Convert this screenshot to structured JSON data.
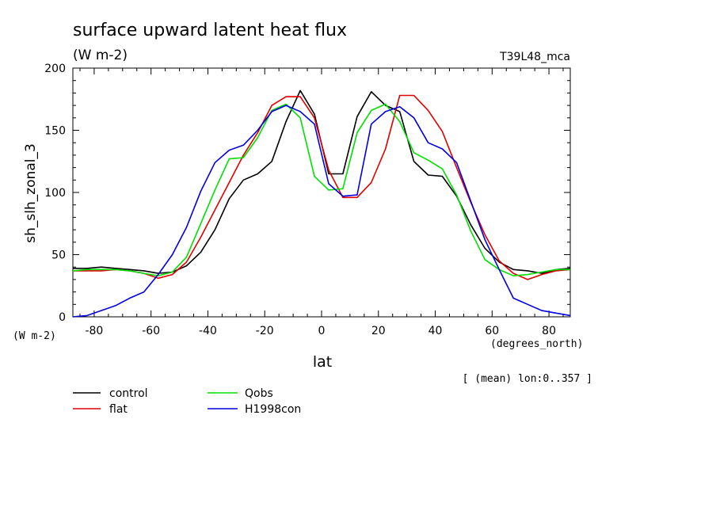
{
  "chart_data": {
    "type": "line",
    "title": "surface upward latent heat flux",
    "units": "(W m-2)",
    "run_label": "T39L48_mca",
    "ylabel": "sh_slh_zonal_3",
    "y_units_corner": "(W m-2)",
    "xlabel": "lat",
    "x_units": "(degrees_north)",
    "note": "[ (mean) lon:0..357 ]",
    "xlim": [
      -87.5,
      87.5
    ],
    "ylim": [
      0,
      200
    ],
    "x_ticks": [
      -80,
      -60,
      -40,
      -20,
      0,
      20,
      40,
      60,
      80
    ],
    "y_ticks": [
      0,
      50,
      100,
      150,
      200
    ],
    "x_tick_labels": [
      "-80",
      "-60",
      "-40",
      "-20",
      "0",
      "20",
      "40",
      "60",
      "80"
    ],
    "y_tick_labels": [
      "0",
      "50",
      "100",
      "150",
      "200"
    ],
    "grid": false,
    "legend_position": "bottom-left",
    "x": [
      -87.5,
      -82.5,
      -77.5,
      -72.5,
      -67.5,
      -62.5,
      -57.5,
      -52.5,
      -47.5,
      -42.5,
      -37.5,
      -32.5,
      -27.5,
      -22.5,
      -17.5,
      -12.5,
      -7.5,
      -2.5,
      2.5,
      7.5,
      12.5,
      17.5,
      22.5,
      27.5,
      32.5,
      37.5,
      42.5,
      47.5,
      52.5,
      57.5,
      62.5,
      67.5,
      72.5,
      77.5,
      82.5,
      87.5
    ],
    "series": [
      {
        "name": "control",
        "color": "#000000",
        "values": [
          39,
          39,
          40,
          39,
          38,
          37,
          35,
          36,
          41,
          52,
          70,
          95,
          110,
          115,
          125,
          157,
          182,
          163,
          115,
          115,
          161,
          181,
          170,
          165,
          125,
          114,
          113,
          97,
          74,
          55,
          44,
          38,
          37,
          35,
          38,
          39
        ]
      },
      {
        "name": "flat",
        "color": "#e00000",
        "values": [
          37,
          37,
          37,
          38,
          37,
          35,
          31,
          34,
          44,
          64,
          86,
          108,
          130,
          148,
          170,
          177,
          177,
          160,
          118,
          96,
          96,
          108,
          135,
          178,
          178,
          166,
          149,
          120,
          92,
          66,
          45,
          35,
          30,
          34,
          37,
          38
        ]
      },
      {
        "name": "Qobs",
        "color": "#00e000",
        "values": [
          37,
          38,
          38,
          38,
          37,
          35,
          33,
          36,
          48,
          75,
          102,
          127,
          128,
          144,
          166,
          171,
          160,
          113,
          102,
          103,
          148,
          166,
          171,
          157,
          132,
          126,
          119,
          98,
          69,
          46,
          38,
          33,
          34,
          36,
          38,
          38
        ]
      },
      {
        "name": "H1998con",
        "color": "#0000e0",
        "values": [
          0,
          1,
          5,
          9,
          15,
          20,
          34,
          50,
          72,
          101,
          124,
          134,
          138,
          150,
          165,
          170,
          165,
          155,
          107,
          97,
          98,
          155,
          165,
          169,
          160,
          140,
          135,
          124,
          93,
          62,
          38,
          15,
          10,
          5,
          3,
          1
        ]
      }
    ]
  }
}
